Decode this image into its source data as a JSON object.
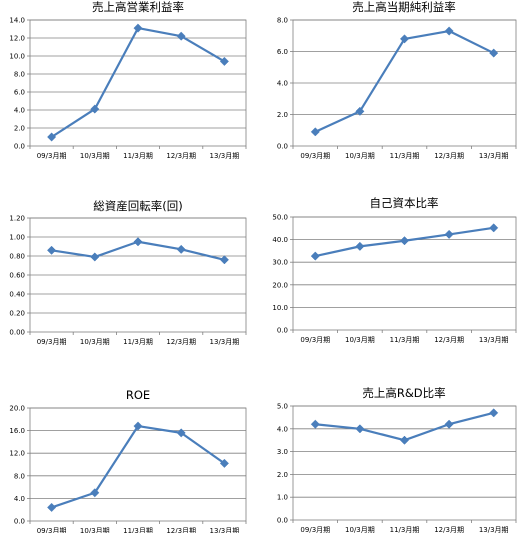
{
  "style": {
    "line_color": "#4a7ebb",
    "grid_color": "#808080",
    "axis_color": "#808080",
    "text_color": "#000000"
  },
  "chart_data": [
    {
      "type": "line",
      "title": "売上高営業利益率",
      "categories": [
        "09/3月期",
        "10/3月期",
        "11/3月期",
        "12/3月期",
        "13/3月期"
      ],
      "values": [
        1.0,
        4.1,
        13.1,
        12.2,
        9.4
      ],
      "ylim": [
        0,
        14
      ],
      "yticks": [
        "0.0",
        "2.0",
        "4.0",
        "6.0",
        "8.0",
        "10.0",
        "12.0",
        "14.0"
      ],
      "grid": true
    },
    {
      "type": "line",
      "title": "売上高当期純利益率",
      "categories": [
        "09/3月期",
        "10/3月期",
        "11/3月期",
        "12/3月期",
        "13/3月期"
      ],
      "values": [
        0.9,
        2.2,
        6.8,
        7.3,
        5.9
      ],
      "ylim": [
        0,
        8
      ],
      "yticks": [
        "0.0",
        "2.0",
        "4.0",
        "6.0",
        "8.0"
      ],
      "grid": true
    },
    {
      "type": "line",
      "title": "総資産回転率(回)",
      "categories": [
        "09/3月期",
        "10/3月期",
        "11/3月期",
        "12/3月期",
        "13/3月期"
      ],
      "values": [
        0.86,
        0.79,
        0.95,
        0.87,
        0.76
      ],
      "ylim": [
        0,
        1.2
      ],
      "yticks": [
        "0.00",
        "0.20",
        "0.40",
        "0.60",
        "0.80",
        "1.00",
        "1.20"
      ],
      "grid": true
    },
    {
      "type": "line",
      "title": "自己資本比率",
      "categories": [
        "09/3月期",
        "10/3月期",
        "11/3月期",
        "12/3月期",
        "13/3月期"
      ],
      "values": [
        32.7,
        37.0,
        39.5,
        42.3,
        45.2
      ],
      "ylim": [
        0,
        50
      ],
      "yticks": [
        "0.0",
        "10.0",
        "20.0",
        "30.0",
        "40.0",
        "50.0"
      ],
      "grid": true
    },
    {
      "type": "line",
      "title": "ROE",
      "categories": [
        "09/3月期",
        "10/3月期",
        "11/3月期",
        "12/3月期",
        "13/3月期"
      ],
      "values": [
        2.4,
        5.0,
        16.8,
        15.6,
        10.2
      ],
      "ylim": [
        0,
        20
      ],
      "yticks": [
        "0.0",
        "4.0",
        "8.0",
        "12.0",
        "16.0",
        "20.0"
      ],
      "grid": true
    },
    {
      "type": "line",
      "title": "売上高R&D比率",
      "categories": [
        "09/3月期",
        "10/3月期",
        "11/3月期",
        "12/3月期",
        "13/3月期"
      ],
      "values": [
        4.2,
        4.0,
        3.5,
        4.2,
        4.7
      ],
      "ylim": [
        0,
        5
      ],
      "yticks": [
        "0.0",
        "1.0",
        "2.0",
        "3.0",
        "4.0",
        "5.0"
      ],
      "grid": true
    }
  ]
}
